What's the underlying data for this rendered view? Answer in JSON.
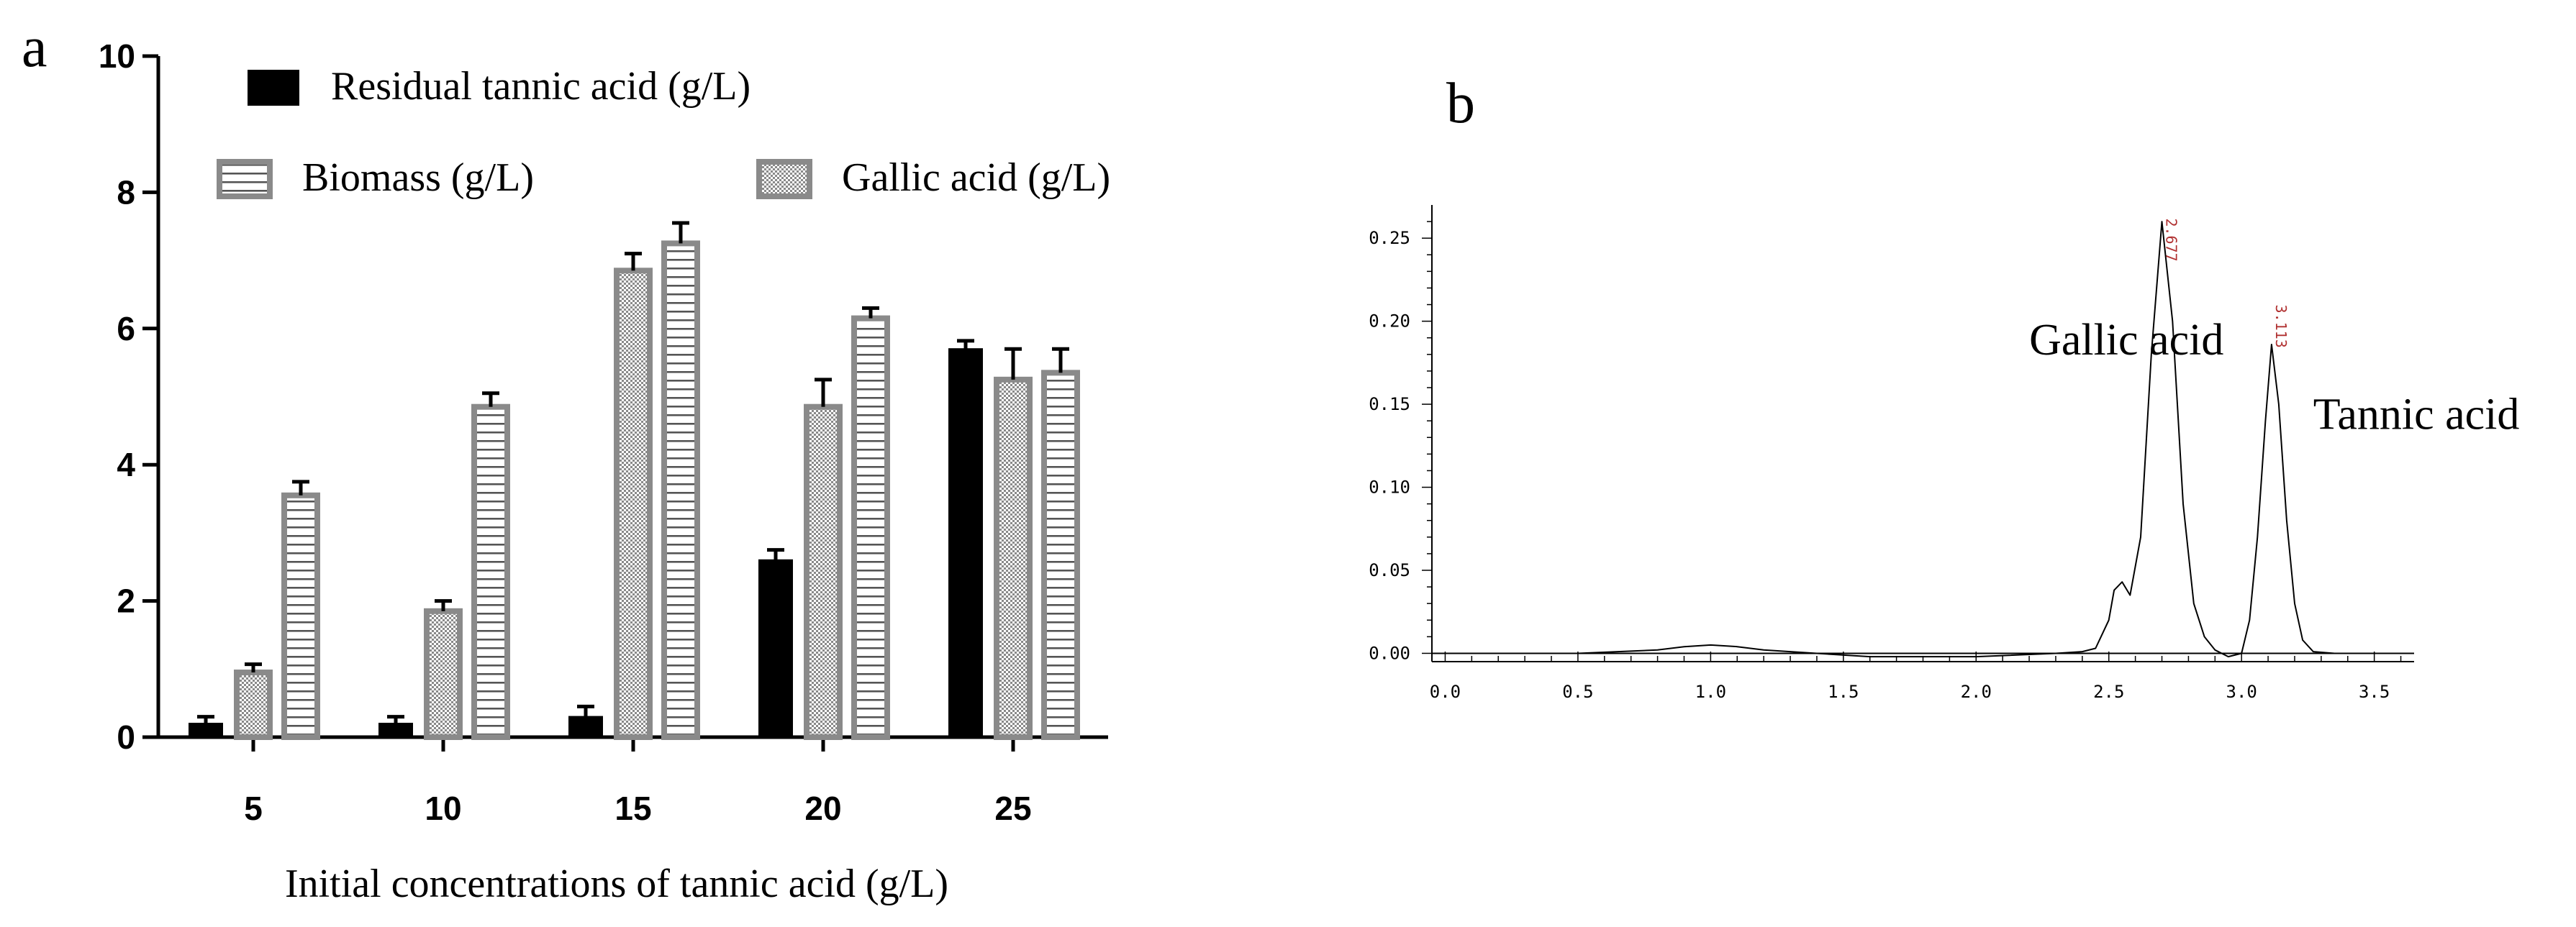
{
  "panels": {
    "a": "a",
    "b": "b"
  },
  "chart_data": [
    {
      "panel": "a",
      "type": "bar",
      "xlabel": "Initial concentrations of tannic acid (g/L)",
      "ylabel": "",
      "ylim": [
        0,
        10
      ],
      "yticks": [
        "0",
        "2",
        "4",
        "6",
        "8",
        "10"
      ],
      "categories": [
        "5",
        "10",
        "15",
        "20",
        "25"
      ],
      "legend_placement": "top",
      "series": [
        {
          "name": "Residual tannic acid (g/L)",
          "pattern": "solid",
          "color": "#000000",
          "values": [
            0.2,
            0.2,
            0.3,
            2.6,
            5.7
          ],
          "errors": [
            0.1,
            0.1,
            0.15,
            0.15,
            0.12
          ]
        },
        {
          "name": "Gallic acid (g/L)",
          "pattern": "checker",
          "color": "#8a8a8a",
          "values": [
            0.95,
            1.85,
            6.85,
            4.85,
            5.25
          ],
          "errors": [
            0.12,
            0.15,
            0.25,
            0.4,
            0.45
          ]
        },
        {
          "name": "Biomass (g/L)",
          "pattern": "horizontal-stripes",
          "color": "#8a8a8a",
          "values": [
            3.55,
            4.85,
            7.25,
            6.15,
            5.35
          ],
          "errors": [
            0.2,
            0.2,
            0.3,
            0.15,
            0.35
          ]
        }
      ]
    },
    {
      "panel": "b",
      "type": "line",
      "xlim": [
        -0.05,
        3.65
      ],
      "ylim": [
        -0.005,
        0.27
      ],
      "xticks": [
        "0.0",
        "0.5",
        "1.0",
        "1.5",
        "2.0",
        "2.5",
        "3.0",
        "3.5"
      ],
      "yticks": [
        "0.00",
        "0.05",
        "0.10",
        "0.15",
        "0.20",
        "0.25"
      ],
      "series": [
        {
          "name": "",
          "x": [
            -0.05,
            0.5,
            0.8,
            0.9,
            1.0,
            1.1,
            1.2,
            1.4,
            1.6,
            2.0,
            2.3,
            2.4,
            2.45,
            2.5,
            2.52,
            2.55,
            2.58,
            2.62,
            2.66,
            2.7,
            2.74,
            2.78,
            2.82,
            2.86,
            2.9,
            2.95,
            3.0,
            3.03,
            3.06,
            3.09,
            3.113,
            3.14,
            3.17,
            3.2,
            3.23,
            3.27,
            3.35,
            3.45,
            3.65
          ],
          "y": [
            0.0,
            0.0,
            0.002,
            0.004,
            0.005,
            0.004,
            0.002,
            0.0,
            -0.002,
            -0.002,
            0.0,
            0.001,
            0.003,
            0.02,
            0.038,
            0.043,
            0.035,
            0.07,
            0.18,
            0.26,
            0.2,
            0.09,
            0.03,
            0.01,
            0.002,
            -0.002,
            0.0,
            0.02,
            0.07,
            0.14,
            0.186,
            0.15,
            0.08,
            0.03,
            0.008,
            0.001,
            0.0,
            0.0,
            0.0
          ]
        }
      ],
      "peak_labels": [
        {
          "x": 2.7,
          "text": "2.677",
          "text_anchor_y": 0.262
        },
        {
          "x": 3.113,
          "text": "3.113",
          "text_anchor_y": 0.21
        }
      ],
      "annotations": [
        {
          "text": "Gallic acid",
          "x": 2.2,
          "y": 0.18
        },
        {
          "text": "Tannic acid",
          "x": 3.27,
          "y": 0.135
        }
      ]
    }
  ]
}
